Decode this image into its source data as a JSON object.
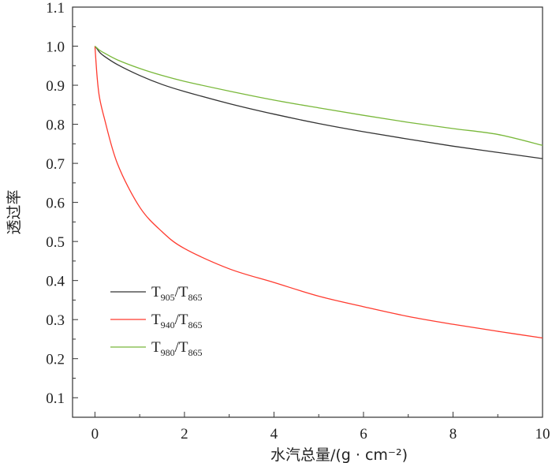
{
  "chart_data": {
    "type": "line",
    "title": "",
    "xlabel": "水汽总量/(g · cm⁻²)",
    "ylabel": "透过率",
    "xlim": [
      -0.5,
      10
    ],
    "ylim": [
      0.05,
      1.1
    ],
    "xticks": [
      0,
      2,
      4,
      6,
      8,
      10
    ],
    "yticks": [
      0.1,
      0.2,
      0.3,
      0.4,
      0.5,
      0.6,
      0.7,
      0.8,
      0.9,
      1.0,
      1.1
    ],
    "ytick_labels": [
      "0.1",
      "0.2",
      "0.3",
      "0.4",
      "0.5",
      "0.6",
      "0.7",
      "0.8",
      "0.9",
      "1.0",
      "1.1"
    ],
    "grid": false,
    "legend_position": "lower-left",
    "x": [
      0,
      0.05,
      0.1,
      0.2,
      0.5,
      1,
      1.5,
      2,
      3,
      4,
      5,
      6,
      7,
      8,
      9,
      10
    ],
    "series": [
      {
        "name_main": "T",
        "name_sub1": "905",
        "name_mid": "/T",
        "name_sub2": "865",
        "color": "#333333",
        "values": [
          1.0,
          0.993,
          0.985,
          0.975,
          0.953,
          0.925,
          0.902,
          0.884,
          0.853,
          0.826,
          0.802,
          0.781,
          0.762,
          0.744,
          0.728,
          0.712
        ]
      },
      {
        "name_main": "T",
        "name_sub1": "940",
        "name_mid": "/T",
        "name_sub2": "865",
        "color": "#ff3b2f",
        "values": [
          1.0,
          0.92,
          0.87,
          0.82,
          0.7,
          0.588,
          0.525,
          0.482,
          0.43,
          0.395,
          0.36,
          0.333,
          0.308,
          0.288,
          0.27,
          0.253
        ]
      },
      {
        "name_main": "T",
        "name_sub1": "980",
        "name_mid": "/T",
        "name_sub2": "865",
        "color": "#79b83a",
        "values": [
          1.0,
          0.995,
          0.99,
          0.983,
          0.965,
          0.943,
          0.925,
          0.91,
          0.885,
          0.862,
          0.842,
          0.823,
          0.805,
          0.789,
          0.774,
          0.746
        ]
      }
    ]
  }
}
